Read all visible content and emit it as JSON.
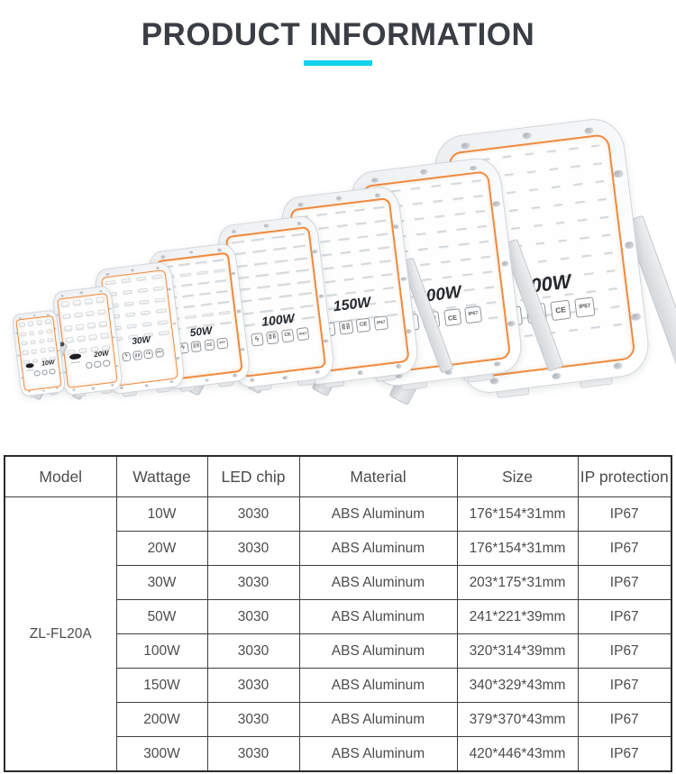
{
  "header": {
    "title": "PRODUCT INFORMATION"
  },
  "colors": {
    "accent": "#12d2f0",
    "frame_orange": "#ee8a3e"
  },
  "products": [
    {
      "label": "10W",
      "led_cols": 4,
      "led_rows": 5,
      "style": "mini"
    },
    {
      "label": "20W",
      "led_cols": 4,
      "led_rows": 5,
      "style": "mini"
    },
    {
      "label": "30W",
      "led_cols": 4,
      "led_rows": 6,
      "style": "standard"
    },
    {
      "label": "50W",
      "led_cols": 4,
      "led_rows": 7,
      "style": "standard"
    },
    {
      "label": "100W",
      "led_cols": 4,
      "led_rows": 8,
      "style": "standard"
    },
    {
      "label": "150W",
      "led_cols": 5,
      "led_rows": 9,
      "style": "standard"
    },
    {
      "label": "200W",
      "led_cols": 6,
      "led_rows": 10,
      "style": "standard"
    },
    {
      "label": "300W",
      "led_cols": 7,
      "led_rows": 11,
      "style": "standard"
    }
  ],
  "cert_icons": [
    {
      "name": "voltage-icon",
      "glyph": "ϟ"
    },
    {
      "name": "surge-pattern-icon",
      "glyph": "⣿⣿"
    },
    {
      "name": "ce-icon",
      "glyph": "CE"
    },
    {
      "name": "ip67-icon",
      "glyph": "IP67"
    }
  ],
  "table": {
    "headers": [
      "Model",
      "Wattage",
      "LED chip",
      "Material",
      "Size",
      "IP protection"
    ],
    "model": "ZL-FL20A",
    "rows": [
      {
        "wattage": "10W",
        "led_chip": "3030",
        "material": "ABS Aluminum",
        "size": "176*154*31mm",
        "ip": "IP67"
      },
      {
        "wattage": "20W",
        "led_chip": "3030",
        "material": "ABS Aluminum",
        "size": "176*154*31mm",
        "ip": "IP67"
      },
      {
        "wattage": "30W",
        "led_chip": "3030",
        "material": "ABS Aluminum",
        "size": "203*175*31mm",
        "ip": "IP67"
      },
      {
        "wattage": "50W",
        "led_chip": "3030",
        "material": "ABS Aluminum",
        "size": "241*221*39mm",
        "ip": "IP67"
      },
      {
        "wattage": "100W",
        "led_chip": "3030",
        "material": "ABS Aluminum",
        "size": "320*314*39mm",
        "ip": "IP67"
      },
      {
        "wattage": "150W",
        "led_chip": "3030",
        "material": "ABS Aluminum",
        "size": "340*329*43mm",
        "ip": "IP67"
      },
      {
        "wattage": "200W",
        "led_chip": "3030",
        "material": "ABS Aluminum",
        "size": "379*370*43mm",
        "ip": "IP67"
      },
      {
        "wattage": "300W",
        "led_chip": "3030",
        "material": "ABS Aluminum",
        "size": "420*446*43mm",
        "ip": "IP67"
      }
    ]
  }
}
